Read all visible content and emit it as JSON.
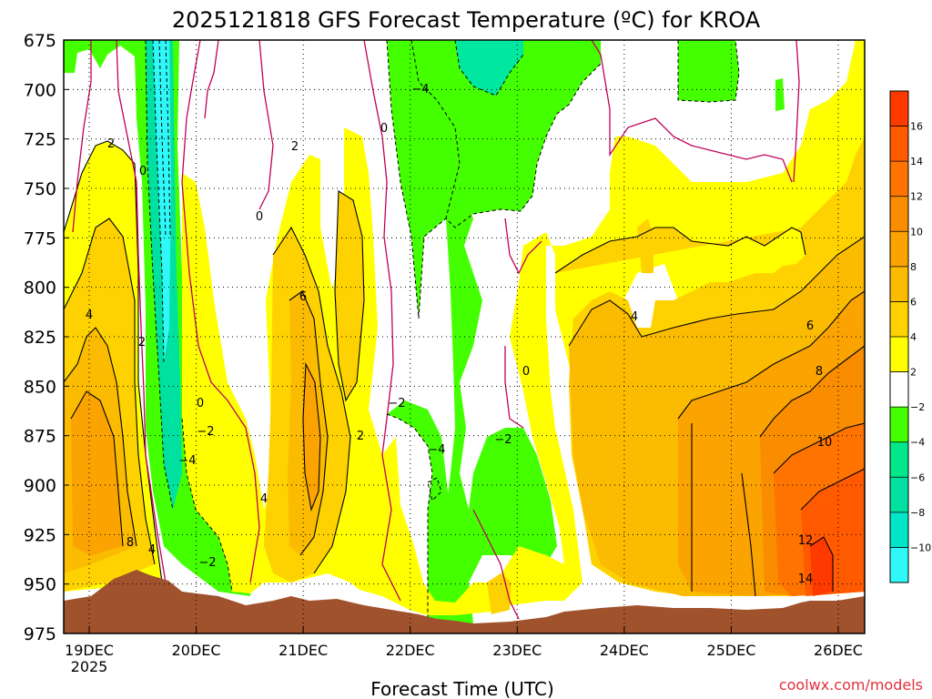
{
  "chart_data": {
    "type": "heatmap",
    "title": "2025121818 GFS Forecast Temperature (ºC) for KROA",
    "xlabel": "Forecast Time (UTC)",
    "credit": "coolwx.com/models",
    "x_ticks": [
      "19DEC",
      "20DEC",
      "21DEC",
      "22DEC",
      "23DEC",
      "24DEC",
      "25DEC",
      "26DEC"
    ],
    "x_year": "2025",
    "y_ticks": [
      "675",
      "700",
      "725",
      "750",
      "775",
      "800",
      "825",
      "850",
      "875",
      "900",
      "925",
      "950",
      "975"
    ],
    "ylim": [
      975,
      675
    ],
    "colorbar": {
      "labels": [
        "16",
        "14",
        "12",
        "10",
        "8",
        "6",
        "4",
        "2",
        "−2",
        "−4",
        "−6",
        "−8",
        "−10"
      ],
      "colors": [
        "#ff3a00",
        "#ff5a00",
        "#ff7400",
        "#fa8c00",
        "#fba300",
        "#fbbb00",
        "#fed200",
        "#ffff00",
        "#ffffff",
        "#44ff00",
        "#00e88a",
        "#00e0a0",
        "#00e6c8",
        "#30f8f8"
      ]
    },
    "contour_labels": [
      "2",
      "0",
      "4",
      "2",
      "−2",
      "−4",
      "6",
      "8",
      "4",
      "0",
      "−2",
      "0",
      "−4",
      "2",
      "−2",
      "2",
      "4",
      "0",
      "−4",
      "−2",
      "0",
      "4",
      "6",
      "8",
      "10",
      "12",
      "14"
    ],
    "colors": {
      "terrain": "#a0522d",
      "zero_line": "#c0005a",
      "contour": "#000000",
      "neg_contour": "#000000",
      "white": "#ffffff",
      "frame": "#000000"
    }
  }
}
